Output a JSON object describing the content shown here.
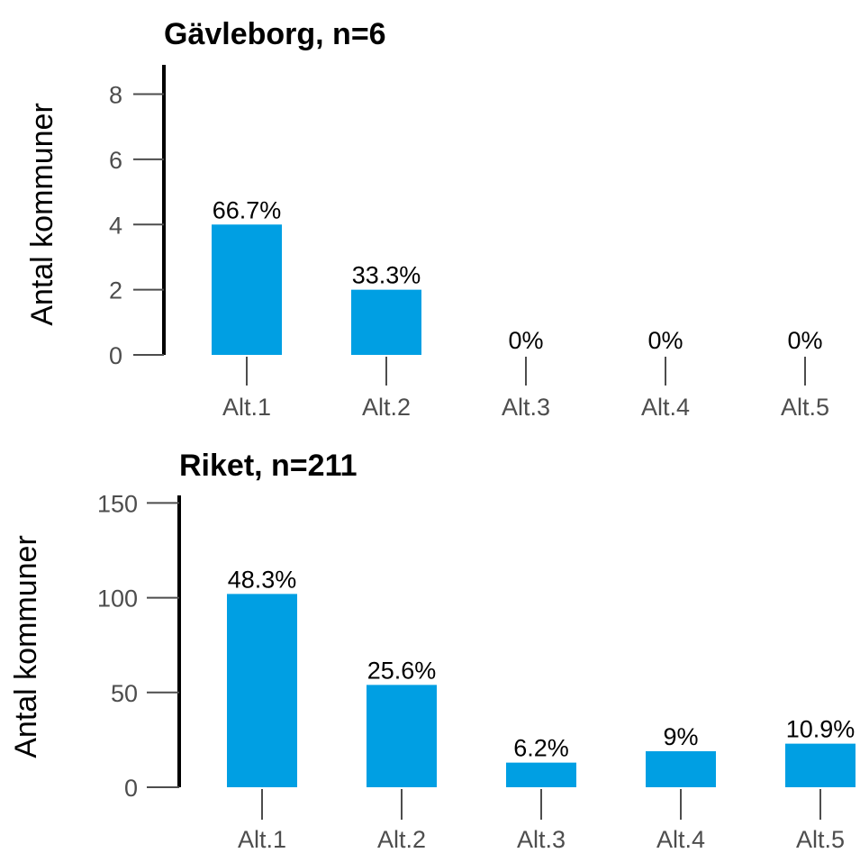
{
  "chart_data": [
    {
      "type": "bar",
      "title": "Gävleborg, n=6",
      "ylabel": "Antal kommuner",
      "xlabel": "",
      "categories": [
        "Alt.1",
        "Alt.2",
        "Alt.3",
        "Alt.4",
        "Alt.5"
      ],
      "values": [
        4,
        2,
        0,
        0,
        0
      ],
      "data_labels": [
        "66.7%",
        "33.3%",
        "0%",
        "0%",
        "0%"
      ],
      "yticks": [
        0,
        2,
        4,
        6,
        8
      ],
      "ylim": [
        0,
        8.9
      ],
      "bar_color": "#009fe3",
      "grid": false,
      "legend": "none"
    },
    {
      "type": "bar",
      "title": "Riket, n=211",
      "ylabel": "Antal kommuner",
      "xlabel": "",
      "categories": [
        "Alt.1",
        "Alt.2",
        "Alt.3",
        "Alt.4",
        "Alt.5"
      ],
      "values": [
        102,
        54,
        13,
        19,
        23
      ],
      "data_labels": [
        "48.3%",
        "25.6%",
        "6.2%",
        "9%",
        "10.9%"
      ],
      "yticks": [
        0,
        50,
        100,
        150
      ],
      "ylim": [
        0,
        154
      ],
      "bar_color": "#009fe3",
      "grid": false,
      "legend": "none"
    }
  ]
}
